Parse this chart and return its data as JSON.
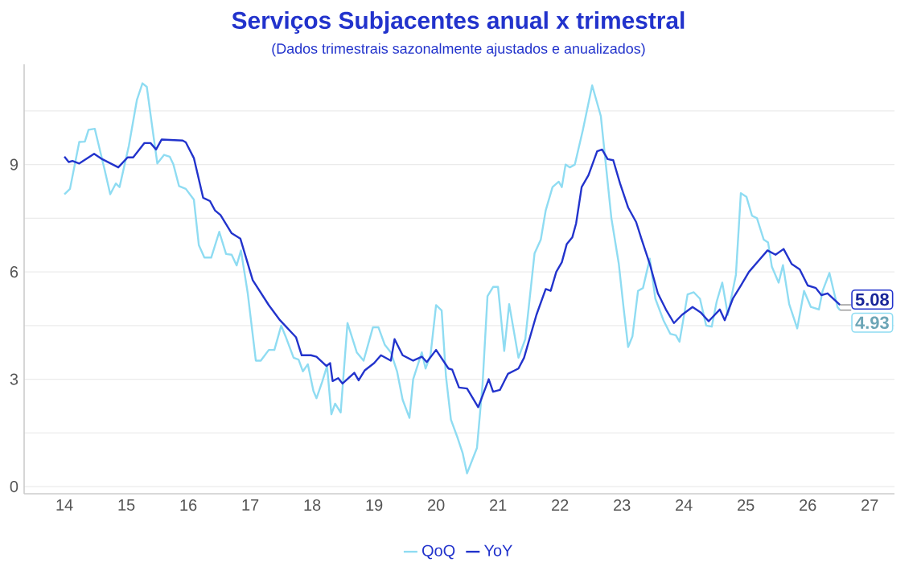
{
  "chart_data": {
    "type": "line",
    "title": "Serviços Subjacentes anual x trimestral",
    "subtitle": "(Dados trimestrais sazonalmente ajustados e anualizados)",
    "xlim": [
      13.35,
      27.4
    ],
    "xticks": [
      14,
      15,
      16,
      17,
      18,
      19,
      20,
      21,
      22,
      23,
      24,
      25,
      26,
      27
    ],
    "ylim": [
      -0.2,
      11.8
    ],
    "yticks": [
      0,
      {
        "value": 1.5,
        "label": null
      },
      3,
      {
        "value": 4.5,
        "label": null
      },
      6,
      {
        "value": 7.5,
        "label": null
      },
      9,
      {
        "value": 10.5,
        "label": null
      }
    ],
    "grid": "y",
    "legend": "bottom",
    "series": [
      {
        "name": "QoQ",
        "color": "#8fdcf2",
        "x": [
          14.0,
          14.09,
          14.24,
          14.33,
          14.39,
          14.49,
          14.65,
          14.74,
          14.83,
          14.89,
          15.04,
          15.17,
          15.26,
          15.33,
          15.43,
          15.5,
          15.61,
          15.7,
          15.76,
          15.85,
          15.96,
          16.09,
          16.17,
          16.26,
          16.37,
          16.5,
          16.61,
          16.7,
          16.78,
          16.85,
          16.96,
          17.09,
          17.17,
          17.3,
          17.39,
          17.5,
          17.57,
          17.7,
          17.78,
          17.85,
          17.93,
          18.02,
          18.07,
          18.16,
          18.24,
          18.31,
          18.37,
          18.46,
          18.57,
          18.72,
          18.83,
          18.98,
          19.07,
          19.17,
          19.27,
          19.37,
          19.46,
          19.57,
          19.63,
          19.77,
          19.83,
          19.91,
          20.0,
          20.09,
          20.16,
          20.24,
          20.35,
          20.43,
          20.5,
          20.66,
          20.75,
          20.83,
          20.92,
          21.0,
          21.1,
          21.18,
          21.33,
          21.44,
          21.59,
          21.69,
          21.77,
          21.88,
          21.98,
          22.03,
          22.09,
          22.16,
          22.24,
          22.37,
          22.52,
          22.66,
          22.83,
          22.95,
          23.03,
          23.1,
          23.17,
          23.26,
          23.34,
          23.45,
          23.54,
          23.67,
          23.78,
          23.87,
          23.93,
          24.06,
          24.16,
          24.26,
          24.36,
          24.45,
          24.53,
          24.62,
          24.71,
          24.84,
          24.92,
          25.01,
          25.1,
          25.18,
          25.29,
          25.36,
          25.42,
          25.53,
          25.6,
          25.7,
          25.83,
          25.94,
          26.05,
          26.18,
          26.24,
          26.35,
          26.48,
          26.52
        ],
        "values": [
          8.17,
          8.32,
          9.63,
          9.64,
          9.97,
          10.0,
          8.85,
          8.17,
          8.47,
          8.37,
          9.52,
          10.8,
          11.27,
          11.17,
          9.9,
          9.03,
          9.27,
          9.22,
          9.0,
          8.4,
          8.32,
          8.02,
          6.75,
          6.4,
          6.4,
          7.12,
          6.5,
          6.48,
          6.18,
          6.6,
          5.4,
          3.52,
          3.52,
          3.82,
          3.82,
          4.5,
          4.2,
          3.6,
          3.55,
          3.22,
          3.42,
          2.67,
          2.47,
          2.92,
          3.37,
          2.02,
          2.32,
          2.07,
          4.57,
          3.75,
          3.52,
          4.45,
          4.45,
          3.97,
          3.75,
          3.22,
          2.43,
          1.92,
          3.0,
          3.75,
          3.3,
          3.67,
          5.07,
          4.92,
          3.07,
          1.87,
          1.35,
          0.93,
          0.37,
          1.08,
          2.85,
          5.32,
          5.58,
          5.58,
          3.79,
          5.1,
          3.6,
          4.12,
          6.52,
          6.9,
          7.72,
          8.37,
          8.52,
          8.37,
          9.0,
          8.92,
          9.0,
          9.97,
          11.21,
          10.35,
          7.5,
          6.22,
          4.95,
          3.9,
          4.2,
          5.47,
          5.55,
          6.37,
          5.25,
          4.65,
          4.27,
          4.23,
          4.05,
          5.37,
          5.43,
          5.25,
          4.5,
          4.47,
          5.17,
          5.7,
          4.8,
          5.92,
          8.2,
          8.1,
          7.57,
          7.5,
          6.9,
          6.82,
          6.15,
          5.7,
          6.19,
          5.1,
          4.42,
          5.47,
          5.02,
          4.95,
          5.47,
          5.97,
          5.02,
          4.93
        ],
        "value_labels": [
          null,
          null,
          null,
          null,
          null,
          null,
          null,
          null,
          null,
          null,
          null,
          null,
          null,
          null,
          null,
          null,
          null,
          null,
          null,
          null,
          null,
          null,
          null,
          null,
          null,
          null,
          null,
          null,
          null,
          null,
          null,
          null,
          null,
          null,
          null,
          null,
          null,
          null,
          null,
          null,
          null,
          null,
          null,
          null,
          null,
          null,
          null,
          null,
          null,
          null,
          null,
          null,
          null,
          null,
          null,
          null,
          null,
          null,
          null,
          null,
          null,
          null,
          null,
          null,
          null,
          null,
          null,
          null,
          null,
          null,
          null,
          null,
          null,
          null,
          null,
          null,
          null,
          null,
          null,
          null,
          null,
          null,
          null,
          null,
          null,
          null,
          null,
          null,
          null,
          null,
          null,
          null,
          null,
          null,
          null,
          null,
          null,
          null,
          null,
          null,
          null,
          null,
          null,
          null,
          null,
          null,
          null,
          null,
          null,
          null,
          null,
          null,
          null,
          null,
          null,
          null,
          null,
          null,
          null,
          null,
          null,
          null,
          null,
          null,
          null,
          null,
          null,
          null,
          null,
          "4.93"
        ]
      },
      {
        "name": "YoY",
        "color": "#2233cc",
        "x": [
          14.0,
          14.07,
          14.13,
          14.24,
          14.48,
          14.61,
          14.87,
          15.02,
          15.11,
          15.29,
          15.39,
          15.48,
          15.57,
          15.91,
          15.96,
          16.09,
          16.24,
          16.35,
          16.43,
          16.52,
          16.7,
          16.84,
          17.04,
          17.3,
          17.48,
          17.74,
          17.83,
          17.98,
          18.07,
          18.23,
          18.29,
          18.33,
          18.42,
          18.49,
          18.68,
          18.75,
          18.85,
          19.0,
          19.11,
          19.27,
          19.33,
          19.46,
          19.63,
          19.77,
          19.85,
          20.0,
          20.2,
          20.26,
          20.37,
          20.5,
          20.68,
          20.85,
          20.92,
          21.03,
          21.16,
          21.33,
          21.42,
          21.62,
          21.77,
          21.85,
          21.94,
          22.03,
          22.11,
          22.2,
          22.26,
          22.35,
          22.46,
          22.6,
          22.68,
          22.77,
          22.86,
          22.97,
          23.1,
          23.23,
          23.32,
          23.45,
          23.58,
          23.71,
          23.84,
          23.97,
          24.14,
          24.27,
          24.4,
          24.58,
          24.66,
          24.79,
          24.92,
          25.05,
          25.2,
          25.35,
          25.48,
          25.61,
          25.74,
          25.87,
          26.0,
          26.13,
          26.22,
          26.32,
          26.52
        ],
        "values": [
          9.22,
          9.07,
          9.1,
          9.03,
          9.3,
          9.15,
          8.92,
          9.2,
          9.2,
          9.6,
          9.6,
          9.42,
          9.7,
          9.67,
          9.62,
          9.18,
          8.07,
          7.98,
          7.72,
          7.59,
          7.08,
          6.93,
          5.77,
          5.07,
          4.65,
          4.17,
          3.67,
          3.67,
          3.63,
          3.37,
          3.45,
          2.95,
          3.03,
          2.88,
          3.18,
          2.97,
          3.25,
          3.45,
          3.67,
          3.52,
          4.12,
          3.67,
          3.52,
          3.63,
          3.48,
          3.82,
          3.3,
          3.27,
          2.77,
          2.74,
          2.22,
          3.0,
          2.65,
          2.7,
          3.15,
          3.3,
          3.6,
          4.8,
          5.52,
          5.47,
          6.0,
          6.27,
          6.78,
          6.97,
          7.35,
          8.37,
          8.7,
          9.37,
          9.42,
          9.15,
          9.12,
          8.47,
          7.8,
          7.39,
          6.9,
          6.22,
          5.4,
          4.95,
          4.57,
          4.8,
          5.02,
          4.87,
          4.62,
          4.95,
          4.65,
          5.25,
          5.62,
          6.0,
          6.3,
          6.6,
          6.48,
          6.64,
          6.22,
          6.07,
          5.62,
          5.55,
          5.35,
          5.4,
          5.08
        ],
        "value_labels": [
          null,
          null,
          null,
          null,
          null,
          null,
          null,
          null,
          null,
          null,
          null,
          null,
          null,
          null,
          null,
          null,
          null,
          null,
          null,
          null,
          null,
          null,
          null,
          null,
          null,
          null,
          null,
          null,
          null,
          null,
          null,
          null,
          null,
          null,
          null,
          null,
          null,
          null,
          null,
          null,
          null,
          null,
          null,
          null,
          null,
          null,
          null,
          null,
          null,
          null,
          null,
          null,
          null,
          null,
          null,
          null,
          null,
          null,
          null,
          null,
          null,
          null,
          null,
          null,
          null,
          null,
          null,
          null,
          null,
          null,
          null,
          null,
          null,
          null,
          null,
          null,
          null,
          null,
          null,
          null,
          null,
          null,
          null,
          null,
          null,
          null,
          null,
          null,
          null,
          null,
          null,
          null,
          null,
          null,
          null,
          null,
          null,
          null,
          "5.08"
        ]
      }
    ]
  }
}
